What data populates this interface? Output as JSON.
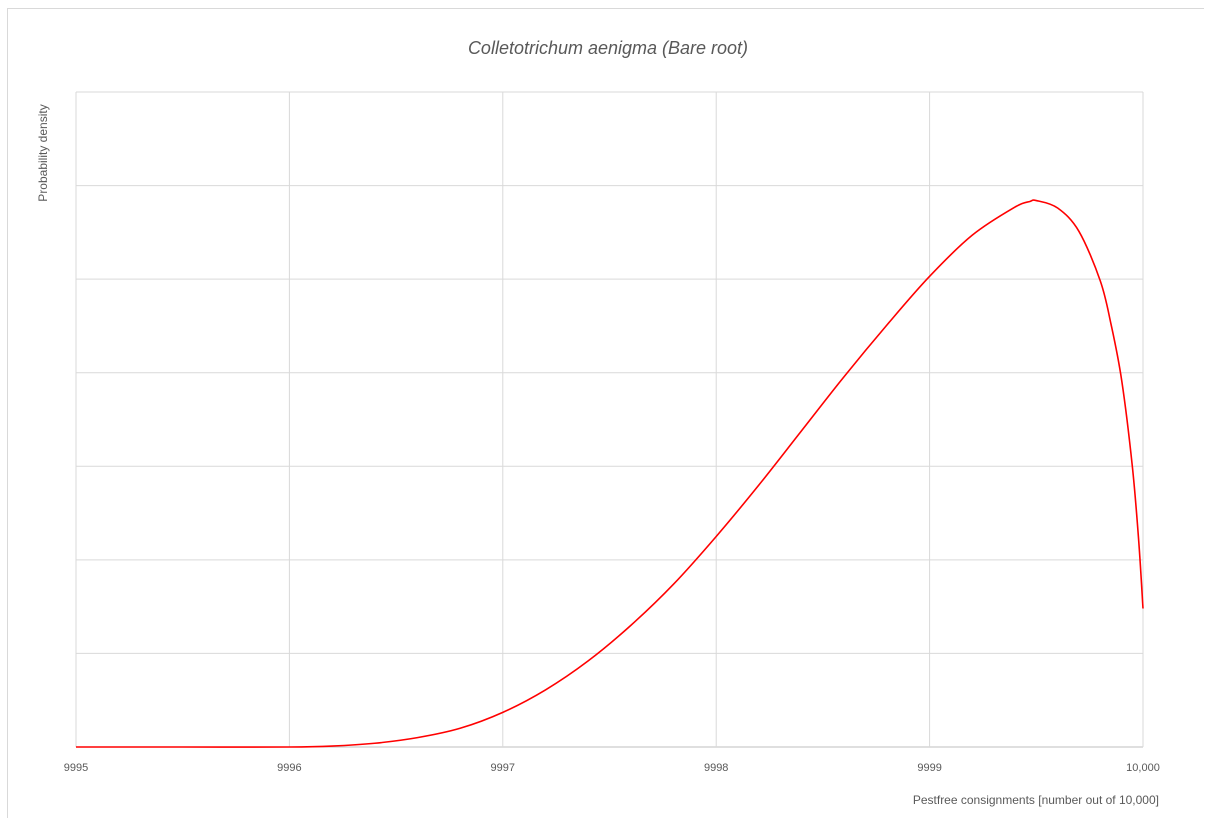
{
  "chart_data": {
    "type": "line",
    "title": "Colletotrichum aenigma (Bare root)",
    "xlabel": "Pestfree consignments [number out of 10,000]",
    "ylabel": "Probability density",
    "xlim": [
      9995,
      10000
    ],
    "ylim": [
      0,
      7
    ],
    "x_ticks": [
      9995,
      9996,
      9997,
      9998,
      9999,
      10000
    ],
    "x_tick_labels": [
      "9995",
      "9996",
      "9997",
      "9998",
      "9999",
      "10,000"
    ],
    "y_tick_labels_shown": false,
    "grid": true,
    "colors": {
      "line": "#ff0000",
      "grid": "#d9d9d9",
      "text": "#595959"
    },
    "series": [
      {
        "x": [
          9995.0,
          9995.5,
          9996.0,
          9996.2,
          9996.4,
          9996.6,
          9996.8,
          9997.0,
          9997.2,
          9997.4,
          9997.6,
          9997.8,
          9998.0,
          9998.2,
          9998.4,
          9998.6,
          9998.8,
          9999.0,
          9999.2,
          9999.4,
          9999.47,
          9999.5,
          9999.6,
          9999.7,
          9999.8,
          9999.85,
          9999.9,
          9999.95,
          9999.98,
          10000.0
        ],
        "y": [
          0.0,
          0.0,
          0.0,
          0.01,
          0.04,
          0.1,
          0.2,
          0.37,
          0.61,
          0.92,
          1.3,
          1.74,
          2.25,
          2.8,
          3.38,
          3.96,
          4.51,
          5.03,
          5.47,
          5.77,
          5.83,
          5.84,
          5.76,
          5.51,
          4.98,
          4.52,
          3.92,
          3.0,
          2.2,
          1.48
        ]
      }
    ]
  }
}
